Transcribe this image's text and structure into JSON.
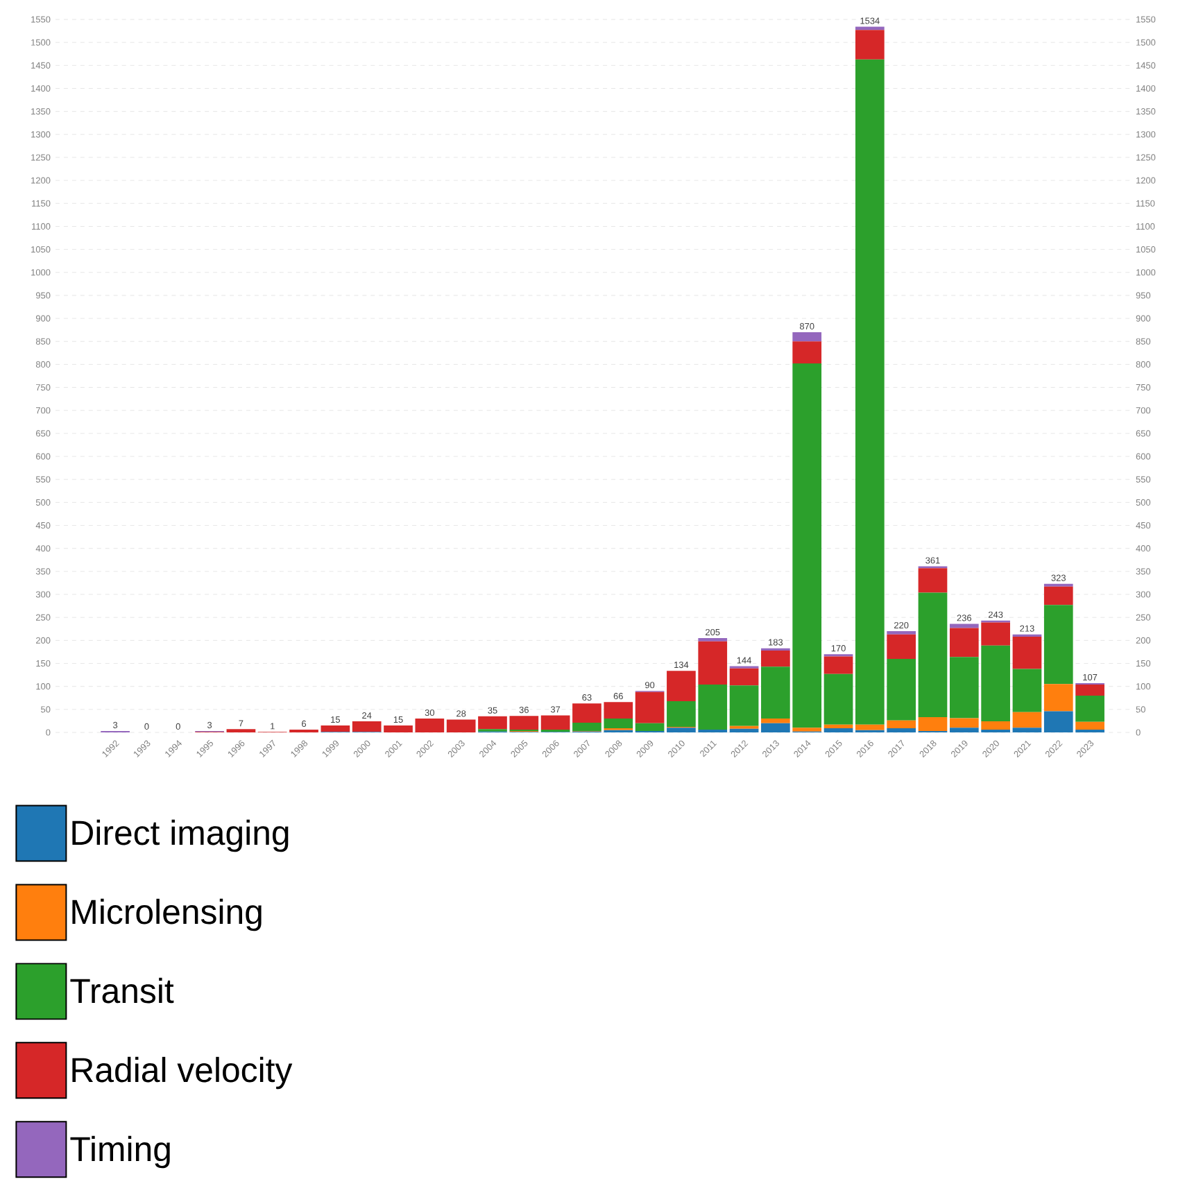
{
  "chart_data": {
    "type": "bar",
    "stacked": true,
    "categories": [
      "1992",
      "1993",
      "1994",
      "1995",
      "1996",
      "1997",
      "1998",
      "1999",
      "2000",
      "2001",
      "2002",
      "2003",
      "2004",
      "2005",
      "2006",
      "2007",
      "2008",
      "2009",
      "2010",
      "2011",
      "2012",
      "2013",
      "2014",
      "2015",
      "2016",
      "2017",
      "2018",
      "2019",
      "2020",
      "2021",
      "2022",
      "2023"
    ],
    "series": [
      {
        "name": "Direct imaging",
        "color": "#1f77b4",
        "values": [
          0,
          0,
          0,
          0,
          0,
          0,
          0,
          1,
          1,
          0,
          0,
          0,
          2,
          1,
          1,
          2,
          5,
          3,
          10,
          6,
          8,
          20,
          2,
          9,
          5,
          9,
          3,
          10,
          6,
          10,
          46,
          6
        ]
      },
      {
        "name": "Microlensing",
        "color": "#ff7f0e",
        "values": [
          0,
          0,
          0,
          0,
          0,
          0,
          0,
          0,
          0,
          0,
          0,
          0,
          0,
          2,
          0,
          1,
          4,
          0,
          2,
          0,
          6,
          10,
          8,
          8,
          12,
          17,
          30,
          21,
          18,
          34,
          59,
          17
        ]
      },
      {
        "name": "Transit",
        "color": "#2ca02c",
        "values": [
          0,
          0,
          0,
          0,
          0,
          0,
          0,
          0,
          0,
          0,
          0,
          0,
          5,
          3,
          5,
          18,
          21,
          17,
          56,
          98,
          88,
          113,
          792,
          110,
          1446,
          134,
          271,
          133,
          165,
          94,
          172,
          57
        ]
      },
      {
        "name": "Radial velocity",
        "color": "#d62728",
        "values": [
          0,
          0,
          0,
          1,
          7,
          1,
          6,
          14,
          23,
          15,
          30,
          28,
          28,
          30,
          31,
          42,
          36,
          68,
          66,
          94,
          37,
          35,
          48,
          38,
          64,
          53,
          53,
          63,
          50,
          70,
          40,
          24
        ]
      },
      {
        "name": "Timing",
        "color": "#9467bd",
        "values": [
          3,
          0,
          0,
          2,
          0,
          0,
          0,
          0,
          0,
          0,
          0,
          0,
          0,
          0,
          0,
          0,
          0,
          2,
          0,
          7,
          5,
          5,
          20,
          5,
          7,
          7,
          4,
          9,
          4,
          5,
          6,
          3
        ]
      }
    ],
    "totals": [
      "3",
      "0",
      "0",
      "3",
      "7",
      "1",
      "6",
      "15",
      "24",
      "15",
      "30",
      "28",
      "35",
      "36",
      "37",
      "63",
      "66",
      "90",
      "134",
      "205",
      "144",
      "183",
      "870",
      "170",
      "1534",
      "220",
      "361",
      "236",
      "243",
      "213",
      "323",
      "107"
    ],
    "ylim": [
      0,
      1550
    ],
    "yticks": [
      0,
      50,
      100,
      150,
      200,
      250,
      300,
      350,
      400,
      450,
      500,
      550,
      600,
      650,
      700,
      750,
      800,
      850,
      900,
      950,
      1000,
      1050,
      1100,
      1150,
      1200,
      1250,
      1300,
      1350,
      1400,
      1450,
      1500,
      1550
    ],
    "y2lim": [
      0,
      1550
    ],
    "y2ticks": [
      0,
      50,
      100,
      150,
      200,
      250,
      300,
      350,
      400,
      450,
      500,
      550,
      600,
      650,
      700,
      750,
      800,
      850,
      900,
      950,
      1000,
      1050,
      1100,
      1150,
      1200,
      1250,
      1300,
      1350,
      1400,
      1450,
      1500,
      1550
    ],
    "grid": "y",
    "legend": "bottom"
  }
}
